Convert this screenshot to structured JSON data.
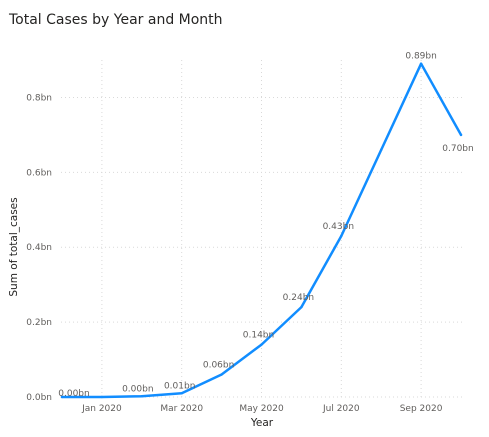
{
  "title": "Total Cases by Year and Month",
  "chart_data": {
    "type": "line",
    "title": "Total Cases by Year and Month",
    "xlabel": "Year",
    "ylabel": "Sum of total_cases",
    "x": [
      "2019-12",
      "2020-01",
      "2020-02",
      "2020-03",
      "2020-04",
      "2020-05",
      "2020-06",
      "2020-07",
      "2020-08",
      "2020-09",
      "2020-10"
    ],
    "x_ticks": [
      {
        "x": "2020-01",
        "label": "Jan 2020"
      },
      {
        "x": "2020-03",
        "label": "Mar 2020"
      },
      {
        "x": "2020-05",
        "label": "May 2020"
      },
      {
        "x": "2020-07",
        "label": "Jul 2020"
      },
      {
        "x": "2020-09",
        "label": "Sep 2020"
      }
    ],
    "series": [
      {
        "values": [
          0.0,
          0.0,
          0.002,
          0.01,
          0.06,
          0.14,
          0.24,
          0.43,
          0.66,
          0.89,
          0.7
        ],
        "color": "#118DFF",
        "data_labels": [
          "0.00bn",
          "",
          "0.00bn",
          "0.01bn",
          "0.06bn",
          "0.14bn",
          "0.24bn",
          "0.43bn",
          "",
          "0.89bn",
          "0.70bn"
        ]
      }
    ],
    "ylim": [
      0,
      0.9
    ],
    "y_ticks": [
      0,
      0.2,
      0.4,
      0.6,
      0.8
    ],
    "y_tick_labels": [
      "0.0bn",
      "0.2bn",
      "0.4bn",
      "0.6bn",
      "0.8bn"
    ],
    "grid": true,
    "grid_style": "dotted",
    "legend": "none"
  }
}
